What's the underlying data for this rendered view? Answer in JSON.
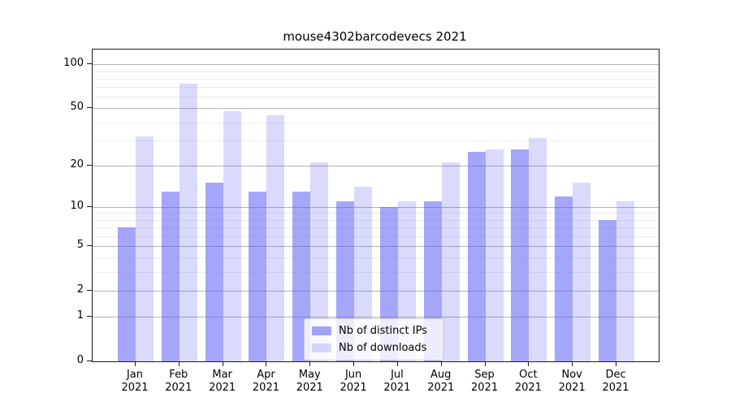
{
  "title": "mouse4302barcodevecs 2021",
  "chart_data": {
    "type": "bar",
    "title": "mouse4302barcodevecs 2021",
    "categories": [
      "Jan 2021",
      "Feb 2021",
      "Mar 2021",
      "Apr 2021",
      "May 2021",
      "Jun 2021",
      "Jul 2021",
      "Aug 2021",
      "Sep 2021",
      "Oct 2021",
      "Nov 2021",
      "Dec 2021"
    ],
    "x_tick_line1": [
      "Jan",
      "Feb",
      "Mar",
      "Apr",
      "May",
      "Jun",
      "Jul",
      "Aug",
      "Sep",
      "Oct",
      "Nov",
      "Dec"
    ],
    "x_tick_line2": "2021",
    "series": [
      {
        "name": "Nb of distinct IPs",
        "values": [
          7,
          13,
          15,
          13,
          13,
          11,
          10,
          11,
          25,
          26,
          12,
          8
        ],
        "color": "#5f5ff5",
        "alpha": 0.56
      },
      {
        "name": "Nb of downloads",
        "values": [
          32,
          74,
          48,
          45,
          21,
          14,
          11,
          21,
          26,
          31,
          15,
          11
        ],
        "color": "#5f5ff5",
        "alpha": 0.23
      }
    ],
    "xlabel": "",
    "ylabel": "",
    "yscale": "log1p",
    "ylim": [
      0,
      126
    ],
    "y_tick_labels": [
      "100",
      "50",
      "20",
      "10",
      "5",
      "2",
      "1",
      "0"
    ],
    "y_major_values": [
      100,
      50,
      20,
      10,
      5,
      2,
      1,
      0
    ],
    "y_minor_values": [
      3,
      4,
      6,
      7,
      8,
      9,
      30,
      40,
      60,
      70,
      80,
      90
    ],
    "grid": true,
    "legend_position": "lower center",
    "colors": {
      "major_grid": "#b4b4b4",
      "minor_grid": "#ececec",
      "axis": "#1a1a1a",
      "background": "#ffffff"
    }
  },
  "legend": {
    "items": [
      {
        "label": "Nb of distinct IPs"
      },
      {
        "label": "Nb of downloads"
      }
    ]
  }
}
